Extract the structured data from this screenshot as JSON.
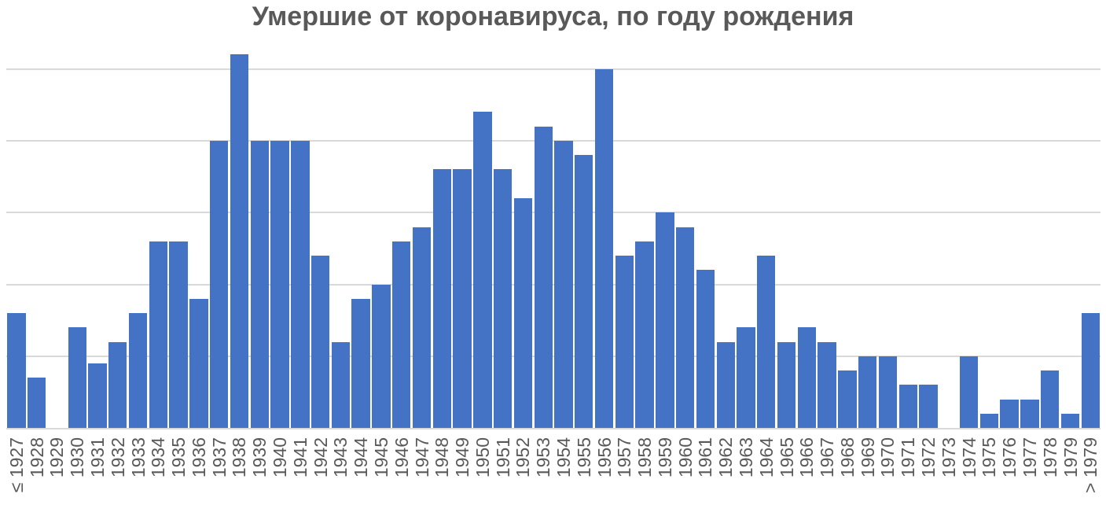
{
  "title": "Умершие от коронавируса, по году рождения",
  "colors": {
    "bar": "#4472C4",
    "gridline": "#D9D9D9",
    "axis_line": "#D9D9D9",
    "tick_label": "#595959",
    "title": "#595959",
    "background": "#FFFFFF"
  },
  "chart_data": {
    "type": "bar",
    "title": "Умершие от коронавируса, по году рождения",
    "xlabel": "",
    "ylabel": "",
    "categories": [
      "≤ 1927",
      "1928",
      "1929",
      "1930",
      "1931",
      "1932",
      "1933",
      "1934",
      "1935",
      "1936",
      "1937",
      "1938",
      "1939",
      "1940",
      "1941",
      "1942",
      "1943",
      "1944",
      "1945",
      "1946",
      "1947",
      "1948",
      "1949",
      "1950",
      "1951",
      "1952",
      "1953",
      "1954",
      "1955",
      "1956",
      "1957",
      "1958",
      "1959",
      "1960",
      "1961",
      "1962",
      "1963",
      "1964",
      "1965",
      "1966",
      "1967",
      "1968",
      "1969",
      "1970",
      "1971",
      "1972",
      "1973",
      "1974",
      "1975",
      "1976",
      "1977",
      "1978",
      "1979",
      "> 1979"
    ],
    "values": [
      16,
      7,
      0,
      14,
      9,
      12,
      16,
      26,
      26,
      18,
      40,
      52,
      40,
      40,
      40,
      24,
      12,
      18,
      20,
      26,
      28,
      36,
      36,
      44,
      36,
      32,
      42,
      40,
      38,
      50,
      24,
      26,
      30,
      28,
      22,
      12,
      14,
      24,
      12,
      14,
      12,
      8,
      10,
      10,
      6,
      6,
      0,
      10,
      2,
      4,
      4,
      8,
      2,
      16
    ],
    "ylim": [
      0,
      52.6
    ],
    "y_grid_interval": 10,
    "grid": "horizontal",
    "y_tick_labels_visible": false,
    "legend": "none",
    "x_tick_rotation_deg": 90
  }
}
